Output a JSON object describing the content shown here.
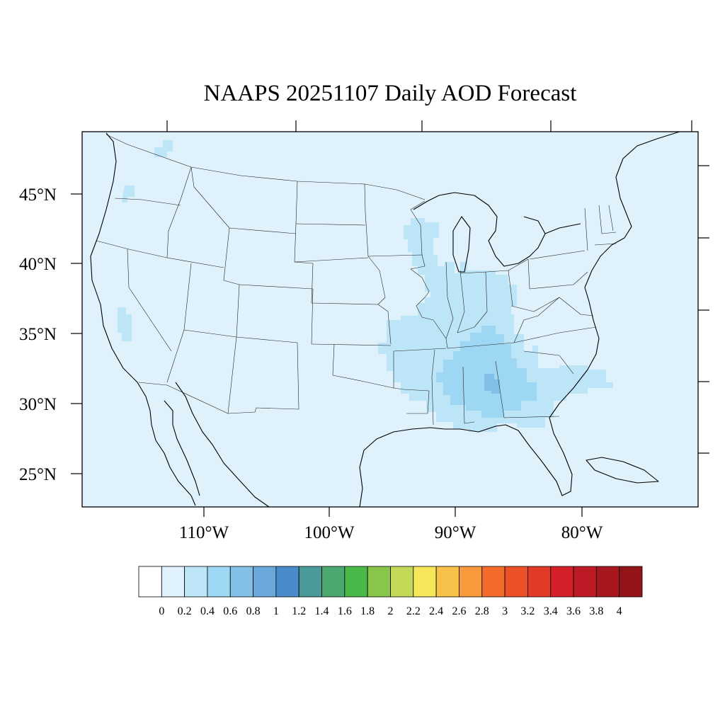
{
  "title": "NAAPS 20251107 Daily AOD Forecast",
  "lat_labels": [
    "45°N",
    "40°N",
    "35°N",
    "30°N",
    "25°N"
  ],
  "lon_labels": [
    "110°W",
    "100°W",
    "90°W",
    "80°W"
  ],
  "map": {
    "background_aod_color": "#dff1fb",
    "plumes": [
      {
        "name": "pacific-northwest-plume",
        "level": "0.2-0.4"
      },
      {
        "name": "california-central-valley-plume",
        "level": "0.2-0.4"
      },
      {
        "name": "mississippi-valley-plume",
        "level": "0.2-0.4"
      },
      {
        "name": "southeast-plume",
        "level": "0.4-0.6"
      },
      {
        "name": "alabama-peak",
        "level": "0.6-0.8"
      }
    ]
  },
  "colorbar": {
    "labels": [
      "0",
      "0.2",
      "0.4",
      "0.6",
      "0.8",
      "1",
      "1.2",
      "1.4",
      "1.6",
      "1.8",
      "2",
      "2.2",
      "2.4",
      "2.6",
      "2.8",
      "3",
      "3.2",
      "3.4",
      "3.6",
      "3.8",
      "4"
    ],
    "colors": [
      "#ffffff",
      "#dff1fb",
      "#bde5f8",
      "#9ed7f4",
      "#82c0e8",
      "#6aa8dc",
      "#4a8cca",
      "#4a9a9a",
      "#4aa870",
      "#4ab848",
      "#88c64a",
      "#c4d858",
      "#f6e65a",
      "#f8c24a",
      "#f89a3c",
      "#f46a2a",
      "#ec5028",
      "#e23a26",
      "#d42028",
      "#bc1a24",
      "#a8161e",
      "#921418"
    ]
  }
}
